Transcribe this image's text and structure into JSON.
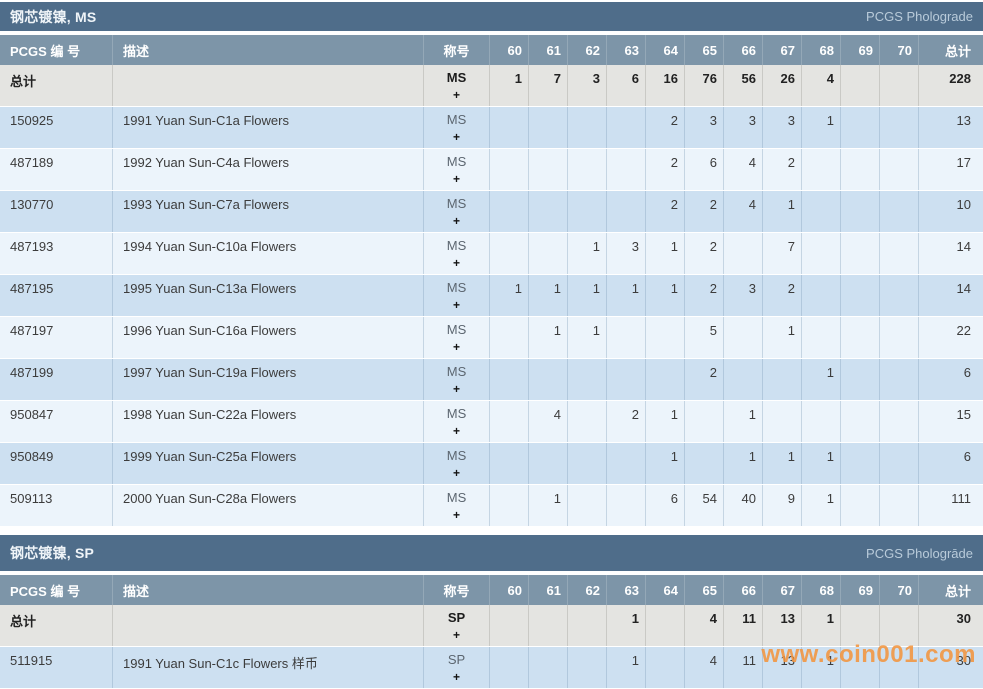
{
  "watermark": "www.coin001.com",
  "columns": {
    "pcgs": "PCGS 编 号",
    "desc": "描述",
    "designation": "称号",
    "grades": [
      "60",
      "61",
      "62",
      "63",
      "64",
      "65",
      "66",
      "67",
      "68",
      "69",
      "70"
    ],
    "total": "总计"
  },
  "colors": {
    "section_bar": "#4f6d8a",
    "column_header": "#7d95a8",
    "totals_row": "#e4e4e1",
    "row_blue": "#cde0f1",
    "row_light": "#ecf4fb",
    "pcgs_number": "#9e6352",
    "watermark_orange": "#f3943e"
  },
  "sections": [
    {
      "title": "钢芯镀镍, MS",
      "brand": "PCGS Pholograde",
      "designation": "MS",
      "plus": "+",
      "total_row": {
        "label": "总计",
        "grades": [
          "1",
          "7",
          "3",
          "6",
          "16",
          "76",
          "56",
          "26",
          "4",
          "",
          ""
        ],
        "total": "228"
      },
      "rows": [
        {
          "pcgs": "150925",
          "desc": "1991 Yuan Sun-C1a Flowers",
          "grades": [
            "",
            "",
            "",
            "",
            "2",
            "3",
            "3",
            "3",
            "1",
            "",
            ""
          ],
          "total": "13"
        },
        {
          "pcgs": "487189",
          "desc": "1992 Yuan Sun-C4a Flowers",
          "grades": [
            "",
            "",
            "",
            "",
            "2",
            "6",
            "4",
            "2",
            "",
            "",
            ""
          ],
          "total": "17"
        },
        {
          "pcgs": "130770",
          "desc": "1993 Yuan Sun-C7a Flowers",
          "grades": [
            "",
            "",
            "",
            "",
            "2",
            "2",
            "4",
            "1",
            "",
            "",
            ""
          ],
          "total": "10"
        },
        {
          "pcgs": "487193",
          "desc": "1994 Yuan Sun-C10a Flowers",
          "grades": [
            "",
            "",
            "1",
            "3",
            "1",
            "2",
            "",
            "7",
            "",
            "",
            ""
          ],
          "total": "14"
        },
        {
          "pcgs": "487195",
          "desc": "1995 Yuan Sun-C13a Flowers",
          "grades": [
            "1",
            "1",
            "1",
            "1",
            "1",
            "2",
            "3",
            "2",
            "",
            "",
            ""
          ],
          "total": "14"
        },
        {
          "pcgs": "487197",
          "desc": "1996 Yuan Sun-C16a Flowers",
          "grades": [
            "",
            "1",
            "1",
            "",
            "",
            "5",
            "",
            "1",
            "",
            "",
            ""
          ],
          "total": "22"
        },
        {
          "pcgs": "487199",
          "desc": "1997 Yuan Sun-C19a Flowers",
          "grades": [
            "",
            "",
            "",
            "",
            "",
            "2",
            "",
            "",
            "1",
            "",
            ""
          ],
          "total": "6"
        },
        {
          "pcgs": "950847",
          "desc": "1998 Yuan Sun-C22a Flowers",
          "grades": [
            "",
            "4",
            "",
            "2",
            "1",
            "",
            "1",
            "",
            "",
            "",
            ""
          ],
          "total": "15"
        },
        {
          "pcgs": "950849",
          "desc": "1999 Yuan Sun-C25a Flowers",
          "grades": [
            "",
            "",
            "",
            "",
            "1",
            "",
            "1",
            "1",
            "1",
            "",
            ""
          ],
          "total": "6"
        },
        {
          "pcgs": "509113",
          "desc": "2000 Yuan Sun-C28a Flowers",
          "grades": [
            "",
            "1",
            "",
            "",
            "6",
            "54",
            "40",
            "9",
            "1",
            "",
            ""
          ],
          "total": "111"
        }
      ]
    },
    {
      "title": "钢芯镀镍, SP",
      "brand": "PCGS Phologrāde",
      "designation": "SP",
      "plus": "+",
      "total_row": {
        "label": "总计",
        "grades": [
          "",
          "",
          "",
          "1",
          "",
          "4",
          "11",
          "13",
          "1",
          "",
          ""
        ],
        "total": "30"
      },
      "rows": [
        {
          "pcgs": "511915",
          "desc": "1991 Yuan Sun-C1c Flowers 样币",
          "grades": [
            "",
            "",
            "",
            "1",
            "",
            "4",
            "11",
            "13",
            "1",
            "",
            ""
          ],
          "total": "30"
        }
      ]
    }
  ]
}
